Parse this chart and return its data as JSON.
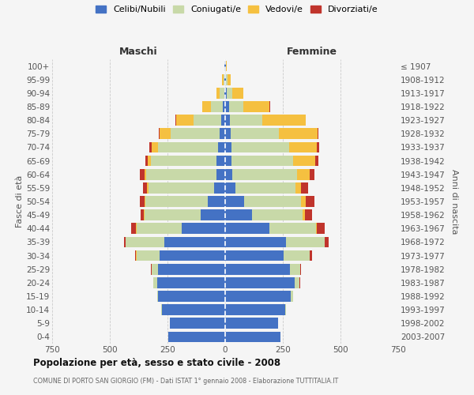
{
  "age_groups": [
    "0-4",
    "5-9",
    "10-14",
    "15-19",
    "20-24",
    "25-29",
    "30-34",
    "35-39",
    "40-44",
    "45-49",
    "50-54",
    "55-59",
    "60-64",
    "65-69",
    "70-74",
    "75-79",
    "80-84",
    "85-89",
    "90-94",
    "95-99",
    "100+"
  ],
  "birth_years": [
    "2003-2007",
    "1998-2002",
    "1993-1997",
    "1988-1992",
    "1983-1987",
    "1978-1982",
    "1973-1977",
    "1968-1972",
    "1963-1967",
    "1958-1962",
    "1953-1957",
    "1948-1952",
    "1943-1947",
    "1938-1942",
    "1933-1937",
    "1928-1932",
    "1923-1927",
    "1918-1922",
    "1913-1917",
    "1908-1912",
    "≤ 1907"
  ],
  "male_celibi": [
    245,
    240,
    275,
    290,
    295,
    290,
    285,
    265,
    190,
    105,
    75,
    48,
    38,
    38,
    32,
    25,
    18,
    10,
    5,
    3,
    2
  ],
  "male_coniugati": [
    0,
    0,
    2,
    5,
    15,
    30,
    100,
    165,
    195,
    245,
    270,
    285,
    305,
    285,
    260,
    210,
    120,
    50,
    18,
    5,
    2
  ],
  "male_vedovi": [
    0,
    0,
    0,
    0,
    0,
    0,
    1,
    1,
    2,
    3,
    4,
    5,
    8,
    12,
    28,
    50,
    75,
    38,
    14,
    5,
    1
  ],
  "male_divorziati": [
    0,
    0,
    0,
    0,
    2,
    2,
    4,
    8,
    22,
    13,
    22,
    18,
    18,
    12,
    8,
    4,
    2,
    2,
    1,
    0,
    0
  ],
  "female_celibi": [
    240,
    230,
    260,
    285,
    300,
    280,
    252,
    262,
    192,
    115,
    82,
    45,
    32,
    28,
    28,
    25,
    22,
    18,
    8,
    4,
    2
  ],
  "female_coniugati": [
    0,
    0,
    2,
    8,
    22,
    45,
    115,
    168,
    202,
    222,
    248,
    260,
    278,
    268,
    248,
    208,
    138,
    62,
    22,
    7,
    2
  ],
  "female_vedovi": [
    0,
    0,
    0,
    0,
    0,
    1,
    1,
    2,
    4,
    8,
    18,
    25,
    55,
    95,
    122,
    168,
    188,
    112,
    48,
    14,
    3
  ],
  "female_divorziati": [
    0,
    0,
    0,
    0,
    2,
    4,
    8,
    18,
    32,
    32,
    38,
    28,
    22,
    12,
    8,
    4,
    2,
    2,
    1,
    0,
    0
  ],
  "colors": {
    "celibi": "#4472C4",
    "coniugati": "#c8d9a8",
    "vedovi": "#f5c040",
    "divorziati": "#c0342c"
  },
  "title": "Popolazione per età, sesso e stato civile - 2008",
  "subtitle": "COMUNE DI PORTO SAN GIORGIO (FM) - Dati ISTAT 1° gennaio 2008 - Elaborazione TUTTITALIA.IT",
  "header_left": "Maschi",
  "header_right": "Femmine",
  "ylabel_left": "Fasce di età",
  "ylabel_right": "Anni di nascita",
  "xlim": 750,
  "bg_color": "#f5f5f5",
  "grid_color": "#cccccc"
}
